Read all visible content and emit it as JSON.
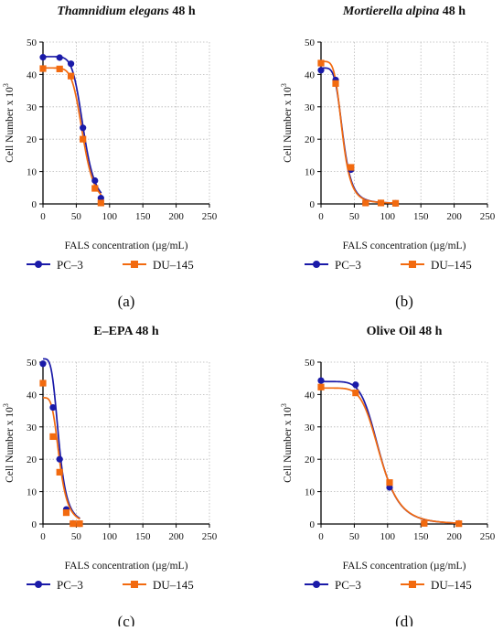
{
  "colors": {
    "PC-3": "#1a1aa8",
    "DU-145": "#f26a0f"
  },
  "chart_data": [
    {
      "type": "line",
      "title_italic": "Thamnidium elegans",
      "title_rest": " 48 h",
      "panel_label": "(a)",
      "xlabel": "FALS concentration (µg/mL)",
      "ylabel": "Cell Number x 10",
      "ylabel_sup": "3",
      "xlim": [
        0,
        250
      ],
      "ylim": [
        0,
        50
      ],
      "xticks": [
        0,
        50,
        100,
        150,
        200,
        250
      ],
      "yticks": [
        0,
        10,
        20,
        30,
        40,
        50
      ],
      "grid": true,
      "series": [
        {
          "name": "PC–3",
          "marker": "circle",
          "x": [
            0,
            25,
            42,
            60,
            78,
            87
          ],
          "y": [
            45.3,
            45.2,
            43.3,
            23.5,
            7.2,
            1.8
          ],
          "curve": {
            "top": 45.5,
            "bottom": 0,
            "ec50": 61,
            "hill": 7
          }
        },
        {
          "name": "DU–145",
          "marker": "square",
          "x": [
            0,
            25,
            42,
            60,
            78,
            87
          ],
          "y": [
            41.8,
            41.7,
            39.5,
            20.0,
            4.8,
            0.3
          ],
          "curve": {
            "top": 42.0,
            "bottom": 0,
            "ec50": 60,
            "hill": 7
          }
        }
      ]
    },
    {
      "type": "line",
      "title_italic": "Mortierella alpina",
      "title_rest": " 48 h",
      "panel_label": "(b)",
      "xlabel": "FALS concentration (µg/mL)",
      "ylabel": "Cell Number x 10",
      "ylabel_sup": "3",
      "xlim": [
        0,
        250
      ],
      "ylim": [
        0,
        50
      ],
      "xticks": [
        0,
        50,
        100,
        150,
        200,
        250
      ],
      "yticks": [
        0,
        10,
        20,
        30,
        40,
        50
      ],
      "grid": true,
      "series": [
        {
          "name": "PC–3",
          "marker": "circle",
          "x": [
            0,
            22,
            45,
            67,
            90,
            112
          ],
          "y": [
            41.3,
            38.3,
            10.6,
            0.4,
            0.3,
            0.2
          ],
          "curve": {
            "top": 42.0,
            "bottom": 0.2,
            "ec50": 33,
            "hill": 5
          }
        },
        {
          "name": "DU–145",
          "marker": "square",
          "x": [
            0,
            22,
            45,
            67,
            90,
            112
          ],
          "y": [
            43.5,
            37.2,
            11.3,
            0.3,
            0.3,
            0.2
          ],
          "curve": {
            "top": 44.0,
            "bottom": 0.2,
            "ec50": 32,
            "hill": 5
          }
        }
      ]
    },
    {
      "type": "line",
      "title_italic": "",
      "title_rest": "E–EPA 48 h",
      "panel_label": "(c)",
      "xlabel": "FALS concentration (µg/mL)",
      "ylabel": "Cell Number x 10",
      "ylabel_sup": "3",
      "xlim": [
        0,
        250
      ],
      "ylim": [
        0,
        50
      ],
      "xticks": [
        0,
        50,
        100,
        150,
        200,
        250
      ],
      "yticks": [
        0,
        10,
        20,
        30,
        40,
        50
      ],
      "grid": true,
      "series": [
        {
          "name": "PC–3",
          "marker": "circle",
          "x": [
            0,
            15,
            25,
            35,
            45,
            55
          ],
          "y": [
            49.5,
            36.0,
            20.0,
            4.5,
            0.2,
            0.1
          ],
          "curve": {
            "top": 51.0,
            "bottom": 0,
            "ec50": 24,
            "hill": 4
          }
        },
        {
          "name": "DU–145",
          "marker": "square",
          "x": [
            0,
            15,
            25,
            35,
            45,
            55
          ],
          "y": [
            43.5,
            27.0,
            16.0,
            3.5,
            0.1,
            0.1
          ],
          "curve": {
            "top": 39.0,
            "bottom": 0,
            "ec50": 25,
            "hill": 4
          }
        }
      ]
    },
    {
      "type": "line",
      "title_italic": "",
      "title_rest": "Olive Oil 48 h",
      "panel_label": "(d)",
      "xlabel": "FALS concentration (µg/mL)",
      "ylabel": "Cell Number x 10",
      "ylabel_sup": "3",
      "xlim": [
        0,
        250
      ],
      "ylim": [
        0,
        50
      ],
      "xticks": [
        0,
        50,
        100,
        150,
        200,
        250
      ],
      "yticks": [
        0,
        10,
        20,
        30,
        40,
        50
      ],
      "grid": true,
      "series": [
        {
          "name": "PC–3",
          "marker": "circle",
          "x": [
            0,
            52,
            103,
            155,
            207
          ],
          "y": [
            44.3,
            43.0,
            11.3,
            0.3,
            0.2
          ],
          "curve": {
            "top": 44.0,
            "bottom": 0,
            "ec50": 88,
            "hill": 6
          }
        },
        {
          "name": "DU–145",
          "marker": "square",
          "x": [
            0,
            52,
            103,
            155,
            207
          ],
          "y": [
            42.3,
            40.5,
            12.8,
            0.2,
            0.1
          ],
          "curve": {
            "top": 42.0,
            "bottom": 0,
            "ec50": 89,
            "hill": 6
          }
        }
      ]
    }
  ]
}
